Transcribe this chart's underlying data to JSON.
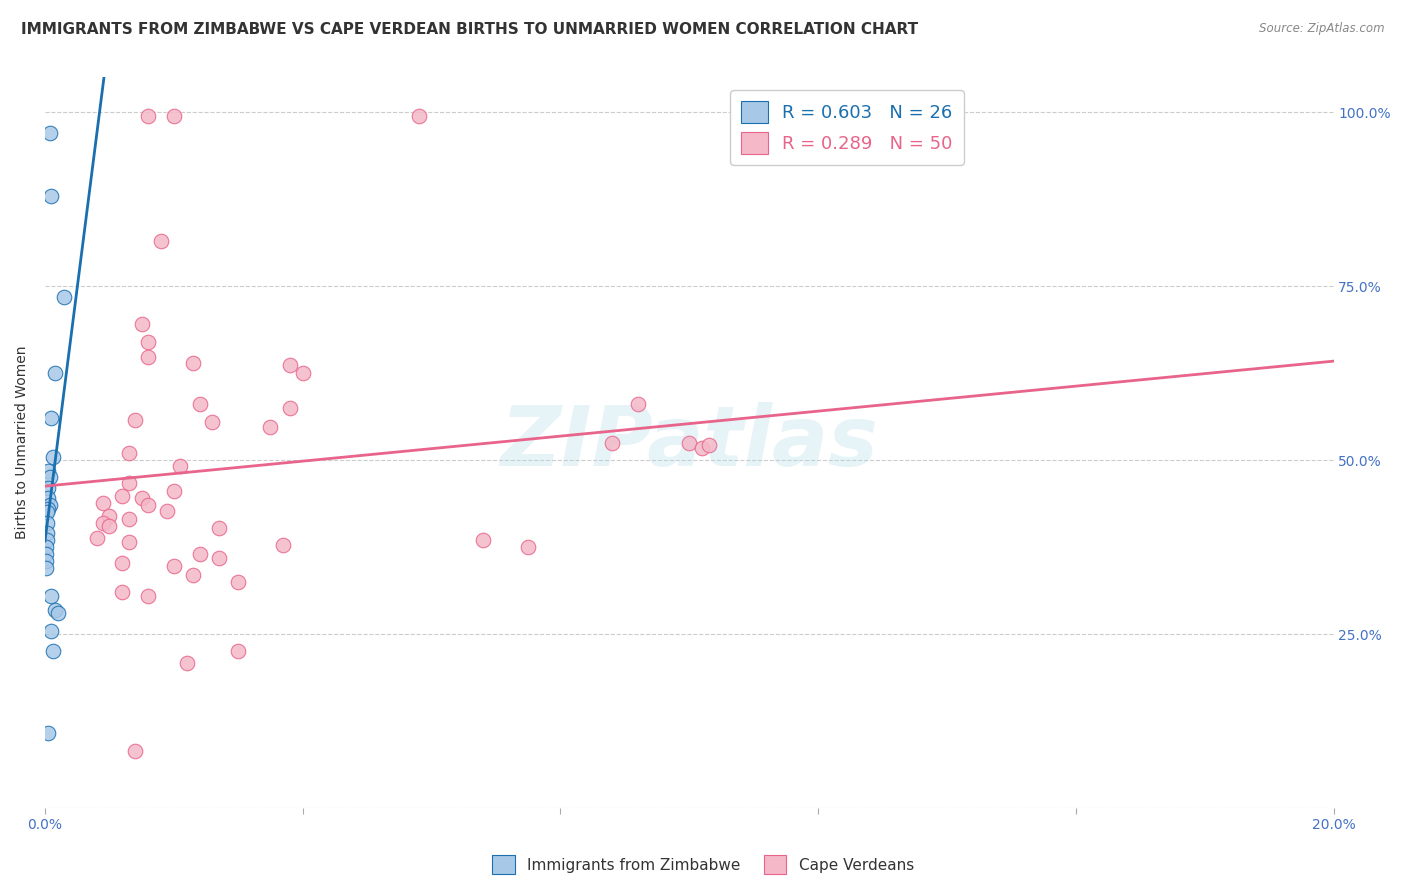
{
  "title": "IMMIGRANTS FROM ZIMBABWE VS CAPE VERDEAN BIRTHS TO UNMARRIED WOMEN CORRELATION CHART",
  "source": "Source: ZipAtlas.com",
  "ylabel": "Births to Unmarried Women",
  "xlim": [
    0.0,
    0.2
  ],
  "ylim": [
    0.0,
    1.05
  ],
  "x_ticks": [
    0.0,
    0.04,
    0.08,
    0.12,
    0.16,
    0.2
  ],
  "x_tick_labels": [
    "0.0%",
    "",
    "",
    "",
    "",
    "20.0%"
  ],
  "y_ticks": [
    0.0,
    0.25,
    0.5,
    0.75,
    1.0
  ],
  "y_tick_labels": [
    "",
    "25.0%",
    "50.0%",
    "75.0%",
    "100.0%"
  ],
  "blue_scatter": [
    [
      0.0008,
      0.97
    ],
    [
      0.001,
      0.88
    ],
    [
      0.003,
      0.735
    ],
    [
      0.0015,
      0.625
    ],
    [
      0.001,
      0.56
    ],
    [
      0.0012,
      0.505
    ],
    [
      0.0005,
      0.485
    ],
    [
      0.0008,
      0.475
    ],
    [
      0.0005,
      0.46
    ],
    [
      0.0004,
      0.445
    ],
    [
      0.0008,
      0.435
    ],
    [
      0.0004,
      0.43
    ],
    [
      0.0003,
      0.425
    ],
    [
      0.0003,
      0.41
    ],
    [
      0.0003,
      0.395
    ],
    [
      0.0003,
      0.385
    ],
    [
      0.0002,
      0.375
    ],
    [
      0.0002,
      0.365
    ],
    [
      0.0002,
      0.355
    ],
    [
      0.0002,
      0.345
    ],
    [
      0.001,
      0.305
    ],
    [
      0.0015,
      0.285
    ],
    [
      0.002,
      0.28
    ],
    [
      0.001,
      0.255
    ],
    [
      0.0013,
      0.225
    ],
    [
      0.0005,
      0.108
    ]
  ],
  "pink_scatter": [
    [
      0.016,
      0.995
    ],
    [
      0.02,
      0.995
    ],
    [
      0.058,
      0.995
    ],
    [
      0.018,
      0.815
    ],
    [
      0.015,
      0.695
    ],
    [
      0.016,
      0.67
    ],
    [
      0.016,
      0.648
    ],
    [
      0.023,
      0.64
    ],
    [
      0.038,
      0.637
    ],
    [
      0.04,
      0.625
    ],
    [
      0.024,
      0.58
    ],
    [
      0.038,
      0.575
    ],
    [
      0.014,
      0.558
    ],
    [
      0.026,
      0.555
    ],
    [
      0.035,
      0.548
    ],
    [
      0.013,
      0.51
    ],
    [
      0.021,
      0.492
    ],
    [
      0.013,
      0.467
    ],
    [
      0.02,
      0.455
    ],
    [
      0.012,
      0.448
    ],
    [
      0.015,
      0.445
    ],
    [
      0.009,
      0.438
    ],
    [
      0.016,
      0.435
    ],
    [
      0.019,
      0.427
    ],
    [
      0.01,
      0.42
    ],
    [
      0.013,
      0.415
    ],
    [
      0.009,
      0.41
    ],
    [
      0.01,
      0.405
    ],
    [
      0.027,
      0.402
    ],
    [
      0.008,
      0.388
    ],
    [
      0.013,
      0.383
    ],
    [
      0.037,
      0.378
    ],
    [
      0.024,
      0.365
    ],
    [
      0.027,
      0.36
    ],
    [
      0.012,
      0.352
    ],
    [
      0.02,
      0.348
    ],
    [
      0.023,
      0.335
    ],
    [
      0.03,
      0.325
    ],
    [
      0.012,
      0.31
    ],
    [
      0.016,
      0.305
    ],
    [
      0.068,
      0.385
    ],
    [
      0.075,
      0.375
    ],
    [
      0.092,
      0.58
    ],
    [
      0.1,
      0.525
    ],
    [
      0.102,
      0.518
    ],
    [
      0.088,
      0.525
    ],
    [
      0.103,
      0.522
    ],
    [
      0.014,
      0.082
    ],
    [
      0.022,
      0.208
    ],
    [
      0.03,
      0.225
    ]
  ],
  "blue_line_color": "#1a6faf",
  "pink_line_color": "#e8648a",
  "scatter_blue_color": "#a8c8e8",
  "scatter_pink_color": "#f4b8c8",
  "grid_color": "#cccccc",
  "background_color": "#ffffff",
  "watermark_text": "ZIPatlas",
  "title_fontsize": 11,
  "axis_label_fontsize": 10,
  "tick_fontsize": 10,
  "legend_fontsize": 13
}
